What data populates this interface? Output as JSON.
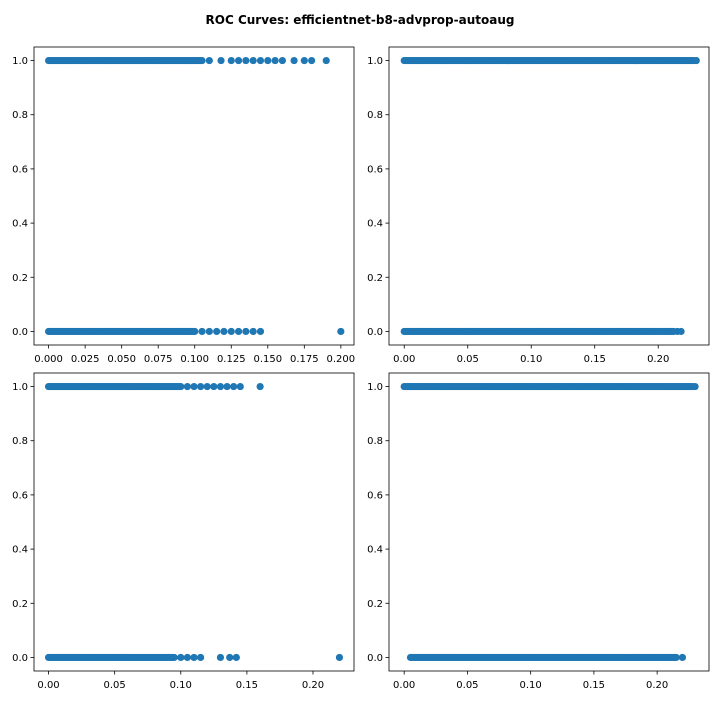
{
  "figure": {
    "title": "ROC Curves: efficientnet-b8-advprop-autoaug"
  },
  "colors": {
    "marker": "#1f77b4",
    "axes": "#000000",
    "background": "#ffffff"
  },
  "chart_data": [
    {
      "type": "scatter",
      "position": "top-left",
      "title": "",
      "xlabel": "",
      "ylabel": "",
      "xlim": [
        -0.01,
        0.209
      ],
      "ylim": [
        -0.05,
        1.05
      ],
      "xticks": [
        0.0,
        0.025,
        0.05,
        0.075,
        0.1,
        0.125,
        0.15,
        0.175,
        0.2
      ],
      "xtick_labels": [
        "0.000",
        "0.025",
        "0.050",
        "0.075",
        "0.100",
        "0.125",
        "0.150",
        "0.175",
        "0.200"
      ],
      "yticks": [
        0.0,
        0.2,
        0.4,
        0.6,
        0.8,
        1.0
      ],
      "ytick_labels": [
        "0.0",
        "0.2",
        "0.4",
        "0.6",
        "0.8",
        "1.0"
      ],
      "grid": false,
      "series": [
        {
          "y": 1.0,
          "x_dense_range": [
            0.0,
            0.105
          ],
          "x_sparse": [
            0.11,
            0.118,
            0.125,
            0.13,
            0.135,
            0.14,
            0.145,
            0.15,
            0.155,
            0.16,
            0.168,
            0.175,
            0.18,
            0.19
          ]
        },
        {
          "y": 0.0,
          "x_dense_range": [
            0.0,
            0.1
          ],
          "x_sparse": [
            0.105,
            0.11,
            0.115,
            0.12,
            0.125,
            0.13,
            0.135,
            0.14,
            0.145,
            0.2
          ]
        }
      ]
    },
    {
      "type": "scatter",
      "position": "top-right",
      "title": "",
      "xlabel": "",
      "ylabel": "",
      "xlim": [
        -0.012,
        0.24
      ],
      "ylim": [
        -0.05,
        1.05
      ],
      "xticks": [
        0.0,
        0.05,
        0.1,
        0.15,
        0.2
      ],
      "xtick_labels": [
        "0.00",
        "0.05",
        "0.10",
        "0.15",
        "0.20"
      ],
      "yticks": [
        0.0,
        0.2,
        0.4,
        0.6,
        0.8,
        1.0
      ],
      "ytick_labels": [
        "0.0",
        "0.2",
        "0.4",
        "0.6",
        "0.8",
        "1.0"
      ],
      "grid": false,
      "series": [
        {
          "y": 1.0,
          "x_dense_range": [
            0.0,
            0.228
          ],
          "x_sparse": [
            0.23
          ]
        },
        {
          "y": 0.0,
          "x_dense_range": [
            0.0,
            0.212
          ],
          "x_sparse": [
            0.215,
            0.218
          ]
        }
      ]
    },
    {
      "type": "scatter",
      "position": "bottom-left",
      "title": "",
      "xlabel": "",
      "ylabel": "",
      "xlim": [
        -0.011,
        0.231
      ],
      "ylim": [
        -0.05,
        1.05
      ],
      "xticks": [
        0.0,
        0.05,
        0.1,
        0.15,
        0.2
      ],
      "xtick_labels": [
        "0.00",
        "0.05",
        "0.10",
        "0.15",
        "0.20"
      ],
      "yticks": [
        0.0,
        0.2,
        0.4,
        0.6,
        0.8,
        1.0
      ],
      "ytick_labels": [
        "0.0",
        "0.2",
        "0.4",
        "0.6",
        "0.8",
        "1.0"
      ],
      "grid": false,
      "series": [
        {
          "y": 1.0,
          "x_dense_range": [
            0.0,
            0.1
          ],
          "x_sparse": [
            0.105,
            0.11,
            0.115,
            0.12,
            0.125,
            0.13,
            0.135,
            0.14,
            0.145,
            0.16
          ]
        },
        {
          "y": 0.0,
          "x_dense_range": [
            0.0,
            0.095
          ],
          "x_sparse": [
            0.1,
            0.105,
            0.11,
            0.115,
            0.13,
            0.137,
            0.142,
            0.22
          ]
        }
      ]
    },
    {
      "type": "scatter",
      "position": "bottom-right",
      "title": "",
      "xlabel": "",
      "ylabel": "",
      "xlim": [
        -0.012,
        0.241
      ],
      "ylim": [
        -0.05,
        1.05
      ],
      "xticks": [
        0.0,
        0.05,
        0.1,
        0.15,
        0.2
      ],
      "xtick_labels": [
        "0.00",
        "0.05",
        "0.10",
        "0.15",
        "0.20"
      ],
      "yticks": [
        0.0,
        0.2,
        0.4,
        0.6,
        0.8,
        1.0
      ],
      "ytick_labels": [
        "0.0",
        "0.2",
        "0.4",
        "0.6",
        "0.8",
        "1.0"
      ],
      "grid": false,
      "series": [
        {
          "y": 1.0,
          "x_dense_range": [
            0.0,
            0.228
          ],
          "x_sparse": [
            0.23
          ]
        },
        {
          "y": 0.0,
          "x_dense_range": [
            0.005,
            0.215
          ],
          "x_sparse": [
            0.22
          ]
        }
      ]
    }
  ]
}
